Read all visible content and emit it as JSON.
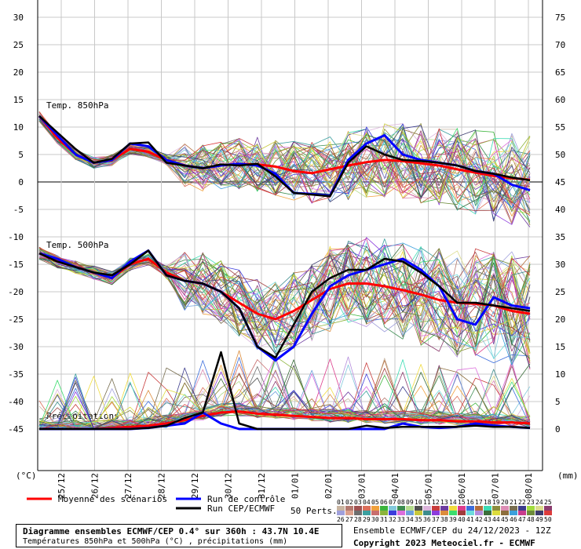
{
  "chart_data": {
    "type": "line",
    "axes": {
      "left_unit": "(°C)",
      "right_unit": "(mm)",
      "left_ticks": [
        30,
        25,
        20,
        15,
        10,
        5,
        0,
        -5,
        -10,
        -15,
        -20,
        -25,
        -30,
        -35,
        -40,
        -45
      ],
      "right_ticks": [
        75,
        70,
        65,
        60,
        55,
        50,
        45,
        40,
        35,
        30,
        25,
        20,
        15,
        10,
        5,
        0
      ],
      "ylim_left": [
        -50,
        30
      ],
      "x_ticks": [
        "25/12",
        "26/12",
        "27/12",
        "28/12",
        "29/12",
        "30/12",
        "31/12",
        "01/01",
        "02/01",
        "03/01",
        "04/01",
        "05/01",
        "06/01",
        "07/01",
        "08/01"
      ]
    },
    "panel_labels": {
      "t850": "Temp. 850hPa",
      "t500": "Temp. 500hPa",
      "precip": "Précipitations"
    },
    "series": [
      {
        "name": "Moyenne des scénarios",
        "color": "#ff0000",
        "t850": [
          12,
          8,
          5,
          3.5,
          4,
          6,
          5.5,
          4,
          3,
          2.5,
          3,
          3.3,
          3.2,
          2.8,
          2,
          1.6,
          2.3,
          3,
          3.6,
          4,
          3.8,
          3.4,
          3,
          2.3,
          1.7,
          1.1,
          0.7,
          0.4
        ],
        "t500": [
          -13,
          -14.5,
          -15.5,
          -16.5,
          -17.5,
          -15,
          -14,
          -16.5,
          -18,
          -18.5,
          -20,
          -22,
          -24,
          -25,
          -23.5,
          -21.5,
          -19.5,
          -18.5,
          -18.5,
          -19,
          -19.7,
          -20.5,
          -21.5,
          -22,
          -22.2,
          -22.5,
          -23.5,
          -24
        ],
        "precip": [
          0,
          0,
          0,
          0,
          0.1,
          0.2,
          0.3,
          0.5,
          0.8,
          1.2,
          1.5,
          1.6,
          1.4,
          1.3,
          1.2,
          1.1,
          1.0,
          1.0,
          0.9,
          0.9,
          0.9,
          0.8,
          0.8,
          0.7,
          0.7,
          0.6,
          0.6,
          0.5
        ]
      },
      {
        "name": "Run de contrôle",
        "color": "#0000ff",
        "t850": [
          12,
          8.5,
          5,
          3.5,
          4,
          7,
          6.5,
          4,
          3,
          2.5,
          3,
          3.3,
          3,
          1.5,
          -2,
          -2.2,
          -2.5,
          4,
          7,
          8.5,
          5,
          4,
          3.5,
          3,
          2,
          1.5,
          -0.5,
          -1.5
        ],
        "t500": [
          -13,
          -14,
          -15.5,
          -16.5,
          -17.5,
          -14.5,
          -12.5,
          -17,
          -18,
          -18.5,
          -20,
          -23,
          -30,
          -32.5,
          -30,
          -24,
          -19,
          -17,
          -16,
          -15,
          -14,
          -16,
          -19,
          -25,
          -26,
          -21,
          -22.5,
          -23
        ],
        "precip": [
          0,
          0,
          0,
          0,
          0,
          0,
          0.1,
          0.3,
          0.5,
          1.5,
          0.5,
          0,
          0,
          0,
          0,
          0,
          0,
          0,
          0,
          0,
          0.5,
          0.2,
          0.1,
          0.2,
          0.5,
          0.3,
          0.2,
          0.1
        ]
      },
      {
        "name": "Run CEP/ECMWF",
        "color": "#000000",
        "t850": [
          12,
          9,
          6,
          3.5,
          4.2,
          7,
          7.2,
          3.5,
          3,
          2.5,
          3.2,
          3,
          3.3,
          1,
          -2,
          -2.3,
          -2.6,
          3.5,
          6.5,
          5,
          4,
          3.8,
          3.5,
          3,
          2,
          1.5,
          0.8,
          0.3
        ],
        "t500": [
          -13,
          -14.5,
          -15.5,
          -16.5,
          -17,
          -15,
          -12.5,
          -17,
          -18,
          -18.5,
          -20,
          -23,
          -30,
          -32,
          -26,
          -20,
          -17.5,
          -16,
          -16,
          -14,
          -14.5,
          -16.5,
          -19,
          -22,
          -22,
          -22.5,
          -23,
          -23.5
        ],
        "precip": [
          0,
          0,
          0,
          0,
          0,
          0,
          0.1,
          0.3,
          1,
          1.5,
          7,
          0.5,
          0,
          0,
          0,
          0,
          0,
          0,
          0.3,
          0.1,
          0.2,
          0.2,
          0.2,
          0.2,
          0.3,
          0.2,
          0.2,
          0.1
        ]
      }
    ],
    "legend": {
      "mean": "Moyenne des scénarios",
      "control": "Run de contrôle",
      "oper": "Run CEP/ECMWF",
      "perts_label": "50 Perts.",
      "pert_numbers_top": [
        "01",
        "02",
        "03",
        "04",
        "05",
        "06",
        "07",
        "08",
        "09",
        "10",
        "11",
        "12",
        "13",
        "14",
        "15",
        "16",
        "17",
        "18",
        "19",
        "20",
        "21",
        "22",
        "23",
        "24",
        "25"
      ],
      "pert_numbers_bottom": [
        "26",
        "27",
        "28",
        "29",
        "30",
        "31",
        "32",
        "33",
        "34",
        "35",
        "36",
        "37",
        "38",
        "39",
        "40",
        "41",
        "42",
        "43",
        "44",
        "45",
        "46",
        "47",
        "48",
        "49",
        "50"
      ],
      "pert_colors_top": [
        "#c8b4a0",
        "#b4786e",
        "#a05050",
        "#dc6e5a",
        "#f0a03c",
        "#3cb43c",
        "#82c8dc",
        "#3c8c50",
        "#b4dc8c",
        "#505050",
        "#dcb4dc",
        "#c83c3c",
        "#6e3ca0",
        "#f0dc3c",
        "#dc3c8c",
        "#3c6edc",
        "#b46e3c",
        "#3cdcb4",
        "#8c8c3c",
        "#dc8cb4",
        "#786e50",
        "#3c3c8c",
        "#a0dc3c",
        "#dcdc8c",
        "#8c3c6e"
      ],
      "pert_colors_bottom": [
        "#a0a0dc",
        "#dca08c",
        "#6e6e6e",
        "#3ca0a0",
        "#c86e6e",
        "#8cb43c",
        "#3c3cdc",
        "#dc6edc",
        "#6ea0dc",
        "#c8c83c",
        "#3c8c8c",
        "#8c3cdc",
        "#dc8c3c",
        "#3cdc6e",
        "#a03c3c",
        "#6edcdc",
        "#b48cdc",
        "#3c6e3c",
        "#dcdc3c",
        "#8c6e3c",
        "#3ca0dc",
        "#c83c8c",
        "#6e8c3c",
        "#3c3c6e",
        "#dc3c3c"
      ]
    }
  },
  "footer": {
    "title": "Diagramme ensembles ECMWF/CEP 0.4° sur 360h : 43.7N 10.4E",
    "subtitle": "Températures 850hPa et 500hPa (°C) , précipitations (mm)",
    "ensemble_info": "Ensemble ECMWF/CEP du 24/12/2023 - 12Z",
    "copyright": "Copyright 2023 Meteociel.fr - ECMWF"
  }
}
